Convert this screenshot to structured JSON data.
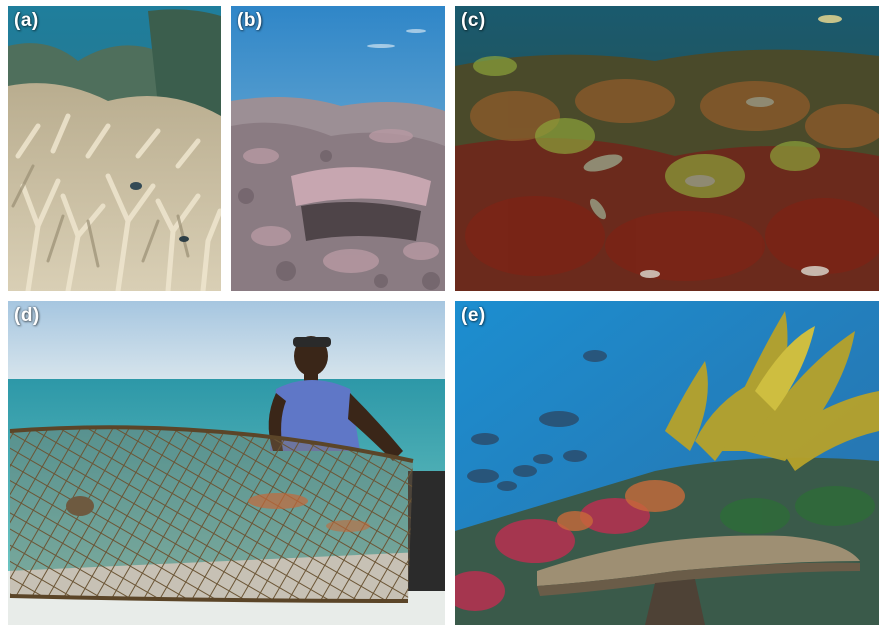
{
  "figure": {
    "panels": [
      {
        "label": "(a)",
        "scene": "bleached-branching-coral-reef"
      },
      {
        "label": "(b)",
        "scene": "degraded-coral-rubble-reef"
      },
      {
        "label": "(c)",
        "scene": "macroalgae-dominated-reef"
      },
      {
        "label": "(d)",
        "scene": "fisher-with-trap-on-boat"
      },
      {
        "label": "(e)",
        "scene": "kelp-and-table-coral-reef"
      }
    ]
  }
}
